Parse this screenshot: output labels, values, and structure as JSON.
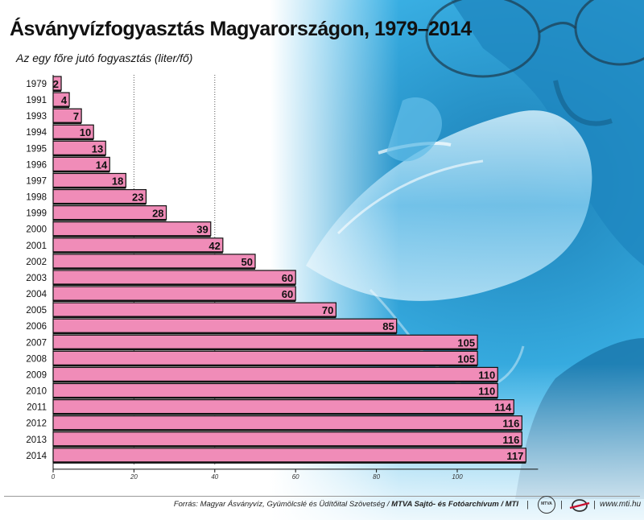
{
  "title": "Ásványvízfogyasztás Magyarországon, 1979–2014",
  "subtitle": "Az egy főre jutó fogyasztás (liter/fő)",
  "colors": {
    "bar_fill": "#f08cb8",
    "bar_stroke": "#111111",
    "photo_blue": "#2aa7e0"
  },
  "chart_data": {
    "type": "bar",
    "orientation": "horizontal",
    "categories": [
      "1979",
      "1991",
      "1993",
      "1994",
      "1995",
      "1996",
      "1997",
      "1998",
      "1999",
      "2000",
      "2001",
      "2002",
      "2003",
      "2004",
      "2005",
      "2006",
      "2007",
      "2008",
      "2009",
      "2010",
      "2011",
      "2012",
      "2013",
      "2014"
    ],
    "values": [
      2,
      4,
      7,
      10,
      13,
      14,
      18,
      23,
      28,
      39,
      42,
      50,
      60,
      60,
      70,
      85,
      105,
      105,
      110,
      110,
      114,
      116,
      116,
      117
    ],
    "xlim": [
      0,
      120
    ],
    "xticks": [
      0,
      20,
      40,
      60,
      80,
      100
    ],
    "xlabel": "",
    "ylabel": "",
    "grid_x": "dotted lines at 20 and 40",
    "legend": "none"
  },
  "footer": {
    "source_text": "Forrás: Magyar Ásványvíz, Gyümölcslé és Üdítőital Szövetség / ",
    "source_bold": "MTVA Sajtó- és Fotóarchívum / MTI",
    "mti_logo_text": "MTVA",
    "separator": "|",
    "website": "www.mti.hu"
  }
}
